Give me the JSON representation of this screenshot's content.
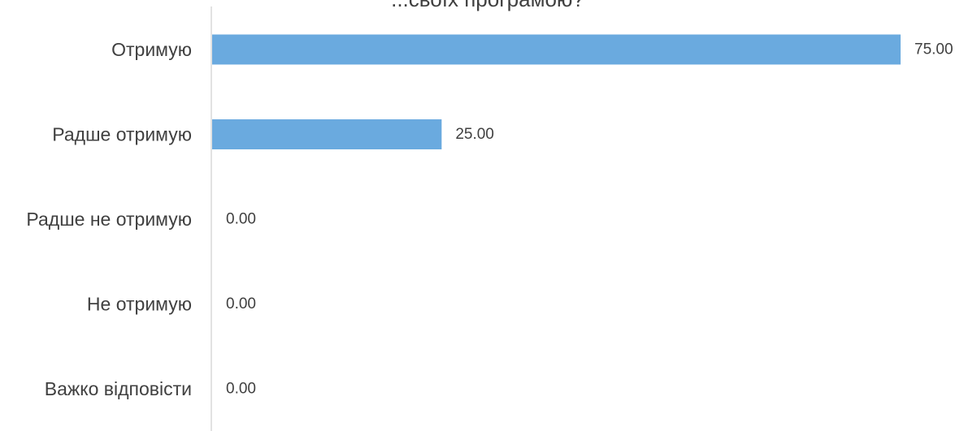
{
  "chart_data": {
    "type": "bar",
    "orientation": "horizontal",
    "title": "...своїх програмою?",
    "categories": [
      "Отримую",
      "Радше отримую",
      "Радше не отримую",
      "Не отримую",
      "Важко відповісти"
    ],
    "values": [
      75.0,
      25.0,
      0.0,
      0.0,
      0.0
    ],
    "data_labels": [
      "75.00",
      "25.00",
      "0.00",
      "0.00",
      "0.00"
    ],
    "xlim": [
      0,
      75
    ],
    "grid": false,
    "legend": "none",
    "bar_color": "#6aaadf",
    "axis_color": "#d9d9d9",
    "text_color": "#404040"
  }
}
